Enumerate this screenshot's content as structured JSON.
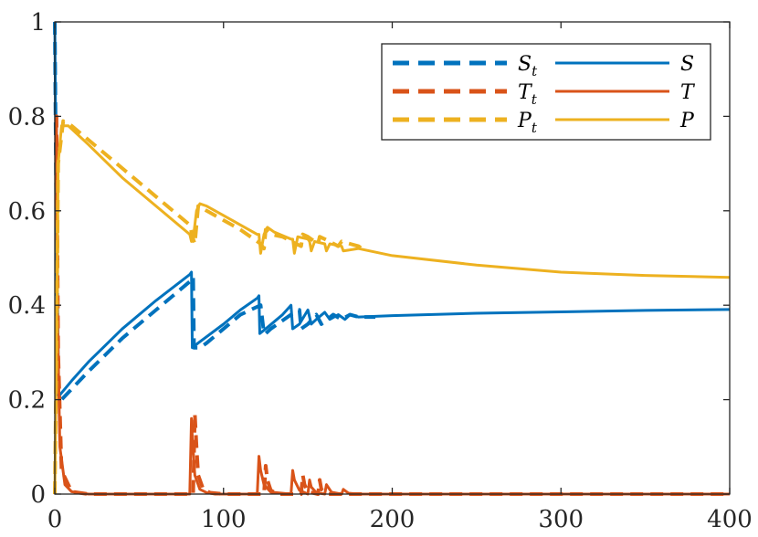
{
  "chart_data": {
    "type": "line",
    "title": "",
    "xlabel": "",
    "ylabel": "",
    "xlim": [
      0,
      400
    ],
    "ylim": [
      0,
      1
    ],
    "xticks": [
      0,
      100,
      200,
      300,
      400
    ],
    "yticks": [
      0,
      0.2,
      0.4,
      0.6,
      0.8,
      1
    ],
    "xtick_labels": [
      "0",
      "100",
      "200",
      "300",
      "400"
    ],
    "ytick_labels": [
      "0",
      "0.2",
      "0.4",
      "0.6",
      "0.8",
      "1"
    ],
    "grid": false,
    "legend_position": "top-right",
    "legend_columns": 2,
    "series": [
      {
        "name": "S_t",
        "label_main": "S",
        "label_sub": "t",
        "style": "dashed",
        "color": "#0072BD",
        "x": [
          0,
          1,
          2,
          4,
          12,
          20,
          40,
          60,
          80,
          82,
          82.5,
          84,
          86,
          90,
          100,
          110,
          122,
          124,
          125,
          128,
          140,
          145,
          146,
          150,
          155,
          158,
          165,
          170,
          175,
          180,
          190
        ],
        "y": [
          1,
          0.55,
          0.2,
          0.2,
          0.23,
          0.26,
          0.33,
          0.39,
          0.45,
          0.46,
          0.31,
          0.31,
          0.31,
          0.32,
          0.35,
          0.38,
          0.4,
          0.34,
          0.34,
          0.35,
          0.38,
          0.39,
          0.35,
          0.36,
          0.38,
          0.36,
          0.38,
          0.37,
          0.38,
          0.375,
          0.375
        ]
      },
      {
        "name": "S",
        "label_main": "S",
        "label_sub": "",
        "style": "solid",
        "color": "#0072BD",
        "x": [
          0,
          1,
          1.5,
          3,
          10,
          20,
          40,
          60,
          80,
          81,
          81.5,
          85,
          100,
          110,
          120,
          121,
          121.5,
          125,
          135,
          140,
          141,
          145,
          150,
          152,
          155,
          160,
          163,
          168,
          172,
          175,
          180,
          200,
          250,
          300,
          350,
          400
        ],
        "y": [
          1,
          0.55,
          0.21,
          0.21,
          0.24,
          0.28,
          0.35,
          0.41,
          0.465,
          0.47,
          0.31,
          0.32,
          0.36,
          0.39,
          0.415,
          0.42,
          0.34,
          0.35,
          0.38,
          0.4,
          0.35,
          0.36,
          0.39,
          0.36,
          0.37,
          0.385,
          0.37,
          0.38,
          0.37,
          0.38,
          0.375,
          0.378,
          0.383,
          0.386,
          0.389,
          0.391
        ]
      },
      {
        "name": "T_t",
        "label_main": "T",
        "label_sub": "t",
        "style": "dashed",
        "color": "#D95319",
        "x": [
          0,
          1,
          2,
          4,
          10,
          20,
          82,
          83,
          84,
          85,
          88,
          92,
          100,
          124,
          125,
          126,
          128,
          132,
          146,
          147,
          148,
          150,
          156,
          157,
          158,
          162,
          170,
          180,
          190,
          200,
          400
        ],
        "y": [
          0.8,
          0.8,
          0.3,
          0.05,
          0.005,
          0,
          0,
          0.17,
          0.1,
          0.04,
          0.01,
          0.003,
          0,
          0,
          0.06,
          0.03,
          0.008,
          0,
          0,
          0.04,
          0.02,
          0.005,
          0,
          0.03,
          0.01,
          0,
          0,
          0,
          0,
          0,
          0
        ]
      },
      {
        "name": "T",
        "label_main": "T",
        "label_sub": "",
        "style": "solid",
        "color": "#D95319",
        "x": [
          0,
          1,
          1.5,
          3,
          6,
          10,
          20,
          80,
          81,
          81.5,
          83,
          86,
          90,
          95,
          120,
          121,
          122,
          124,
          128,
          140,
          141,
          142,
          145,
          150,
          151,
          152,
          155,
          160,
          161,
          164,
          170,
          171,
          174,
          180,
          190,
          200,
          400
        ],
        "y": [
          0.8,
          0.8,
          0.4,
          0.1,
          0.02,
          0.005,
          0,
          0,
          0.16,
          0.12,
          0.04,
          0.01,
          0.003,
          0,
          0,
          0.08,
          0.05,
          0.02,
          0.004,
          0,
          0.05,
          0.03,
          0.008,
          0,
          0.03,
          0.015,
          0.003,
          0,
          0.02,
          0.004,
          0,
          0.01,
          0.002,
          0,
          0,
          0,
          0
        ]
      },
      {
        "name": "P_t",
        "label_main": "P",
        "label_sub": "t",
        "style": "dashed",
        "color": "#EDB120",
        "x": [
          0,
          1,
          2,
          5,
          10,
          20,
          40,
          60,
          80,
          82,
          83,
          85,
          90,
          100,
          110,
          122,
          124,
          125,
          128,
          135,
          143,
          146,
          147,
          150,
          156,
          157,
          160,
          168,
          170,
          175,
          180,
          182
        ],
        "y": [
          0,
          0.3,
          0.7,
          0.79,
          0.78,
          0.75,
          0.69,
          0.63,
          0.57,
          0.54,
          0.53,
          0.61,
          0.6,
          0.58,
          0.56,
          0.53,
          0.52,
          0.56,
          0.55,
          0.545,
          0.53,
          0.525,
          0.55,
          0.545,
          0.53,
          0.545,
          0.54,
          0.525,
          0.535,
          0.53,
          0.525,
          0.52
        ]
      },
      {
        "name": "P",
        "label_main": "P",
        "label_sub": "",
        "style": "solid",
        "color": "#EDB120",
        "x": [
          0,
          1,
          2,
          4,
          8,
          20,
          40,
          60,
          80,
          81,
          82,
          84,
          86,
          90,
          100,
          110,
          120,
          121,
          122,
          124,
          126,
          130,
          140,
          141,
          142,
          144,
          150,
          151,
          152,
          154,
          160,
          161,
          163,
          170,
          171,
          180,
          200,
          250,
          300,
          350,
          400
        ],
        "y": [
          0,
          0.3,
          0.7,
          0.78,
          0.78,
          0.74,
          0.67,
          0.61,
          0.55,
          0.535,
          0.54,
          0.6,
          0.615,
          0.61,
          0.59,
          0.57,
          0.55,
          0.55,
          0.51,
          0.55,
          0.565,
          0.555,
          0.54,
          0.54,
          0.51,
          0.545,
          0.54,
          0.535,
          0.515,
          0.535,
          0.53,
          0.515,
          0.53,
          0.525,
          0.515,
          0.52,
          0.505,
          0.485,
          0.47,
          0.463,
          0.459
        ]
      }
    ]
  }
}
